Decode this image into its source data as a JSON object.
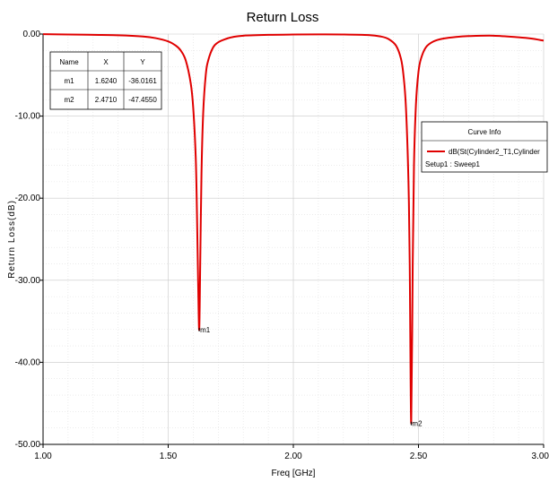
{
  "chart_data": {
    "type": "line",
    "title": "Return Loss",
    "xlabel": "Freq [GHz]",
    "ylabel": "Return Loss(dB)",
    "xlim": [
      1.0,
      3.0
    ],
    "ylim": [
      -50.0,
      0.0
    ],
    "x_ticks": [
      1.0,
      1.5,
      2.0,
      2.5,
      3.0
    ],
    "x_tick_labels": [
      "1.00",
      "1.50",
      "2.00",
      "2.50",
      "3.00"
    ],
    "y_ticks": [
      0,
      -10,
      -20,
      -30,
      -40,
      -50
    ],
    "y_tick_labels": [
      "0.00",
      "-10.00",
      "-20.00",
      "-30.00",
      "-40.00",
      "-50.00"
    ],
    "grid": true,
    "series": [
      {
        "name": "dB(St(Cylinder2_T1,Cylinder",
        "color": "#e00000",
        "x": [
          1.0,
          1.1,
          1.2,
          1.3,
          1.4,
          1.45,
          1.5,
          1.53,
          1.55,
          1.57,
          1.59,
          1.6,
          1.61,
          1.615,
          1.62,
          1.624,
          1.628,
          1.633,
          1.64,
          1.65,
          1.66,
          1.68,
          1.7,
          1.73,
          1.76,
          1.8,
          1.9,
          2.0,
          2.1,
          2.2,
          2.3,
          2.35,
          2.38,
          2.41,
          2.43,
          2.44,
          2.45,
          2.46,
          2.465,
          2.471,
          2.477,
          2.482,
          2.49,
          2.5,
          2.51,
          2.53,
          2.56,
          2.6,
          2.65,
          2.7,
          2.8,
          2.9,
          2.95,
          3.0
        ],
        "y": [
          -0.02,
          -0.05,
          -0.1,
          -0.15,
          -0.3,
          -0.5,
          -0.9,
          -1.4,
          -2.0,
          -3.2,
          -6.0,
          -9.0,
          -15.0,
          -22.0,
          -31.0,
          -36.0,
          -28.0,
          -17.0,
          -9.5,
          -5.0,
          -3.2,
          -1.6,
          -1.0,
          -0.6,
          -0.35,
          -0.2,
          -0.1,
          -0.06,
          -0.04,
          -0.05,
          -0.12,
          -0.3,
          -0.6,
          -1.4,
          -3.0,
          -5.0,
          -9.0,
          -18.0,
          -28.0,
          -47.455,
          -28.0,
          -16.0,
          -8.5,
          -4.6,
          -3.0,
          -1.6,
          -0.9,
          -0.55,
          -0.35,
          -0.25,
          -0.2,
          -0.4,
          -0.55,
          -0.8
        ]
      }
    ],
    "markers": [
      {
        "name": "m1",
        "x": 1.624,
        "y": -36.0161
      },
      {
        "name": "m2",
        "x": 2.471,
        "y": -47.455
      }
    ],
    "marker_table": {
      "headers": [
        "Name",
        "X",
        "Y"
      ],
      "rows": [
        [
          "m1",
          "1.6240",
          "-36.0161"
        ],
        [
          "m2",
          "2.4710",
          "-47.4550"
        ]
      ]
    },
    "legend": {
      "title": "Curve Info",
      "entry": "dB(St(Cylinder2_T1,Cylinder",
      "subtext": "Setup1 : Sweep1"
    }
  }
}
